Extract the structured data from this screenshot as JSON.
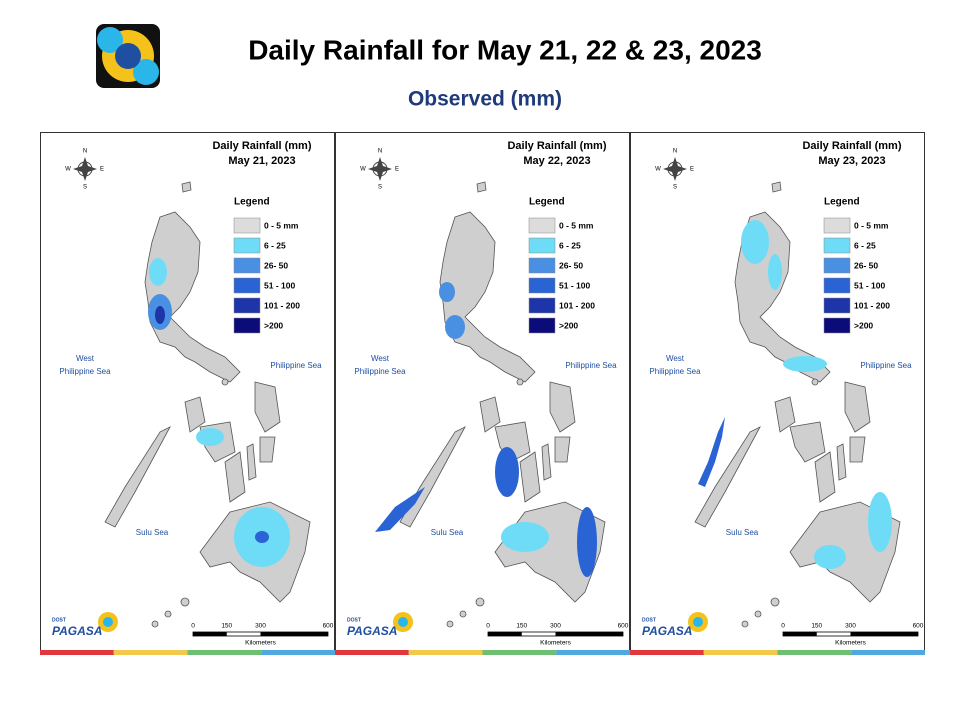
{
  "header": {
    "title": "Daily Rainfall for May 21, 22 & 23, 2023",
    "subtitle": "Observed (mm)"
  },
  "panels": [
    {
      "title": "Daily Rainfall (mm)",
      "date": "May 21, 2023"
    },
    {
      "title": "Daily Rainfall (mm)",
      "date": "May 22, 2023"
    },
    {
      "title": "Daily Rainfall (mm)",
      "date": "May 23, 2023"
    }
  ],
  "legend": {
    "title": "Legend",
    "items": [
      {
        "label": "0 - 5 mm",
        "color": "#dcdcdc"
      },
      {
        "label": "6 - 25",
        "color": "#6fdcf7"
      },
      {
        "label": "26- 50",
        "color": "#4a90e2"
      },
      {
        "label": "51 - 100",
        "color": "#2a63d4"
      },
      {
        "label": "101 - 200",
        "color": "#1d35a8"
      },
      {
        "label": ">200",
        "color": "#0b0b7a"
      }
    ]
  },
  "map_labels": {
    "west_philippine_sea": [
      "West",
      "Philippine Sea"
    ],
    "philippine_sea": "Philippine Sea",
    "sulu_sea": "Sulu Sea"
  },
  "compass": {
    "n": "N",
    "e": "E",
    "w": "W",
    "s": "S"
  },
  "scale": {
    "ticks": [
      0,
      150,
      300,
      600
    ],
    "unit": "Kilometers"
  },
  "logo": {
    "agency": "DOST",
    "name": "PAGASA"
  }
}
